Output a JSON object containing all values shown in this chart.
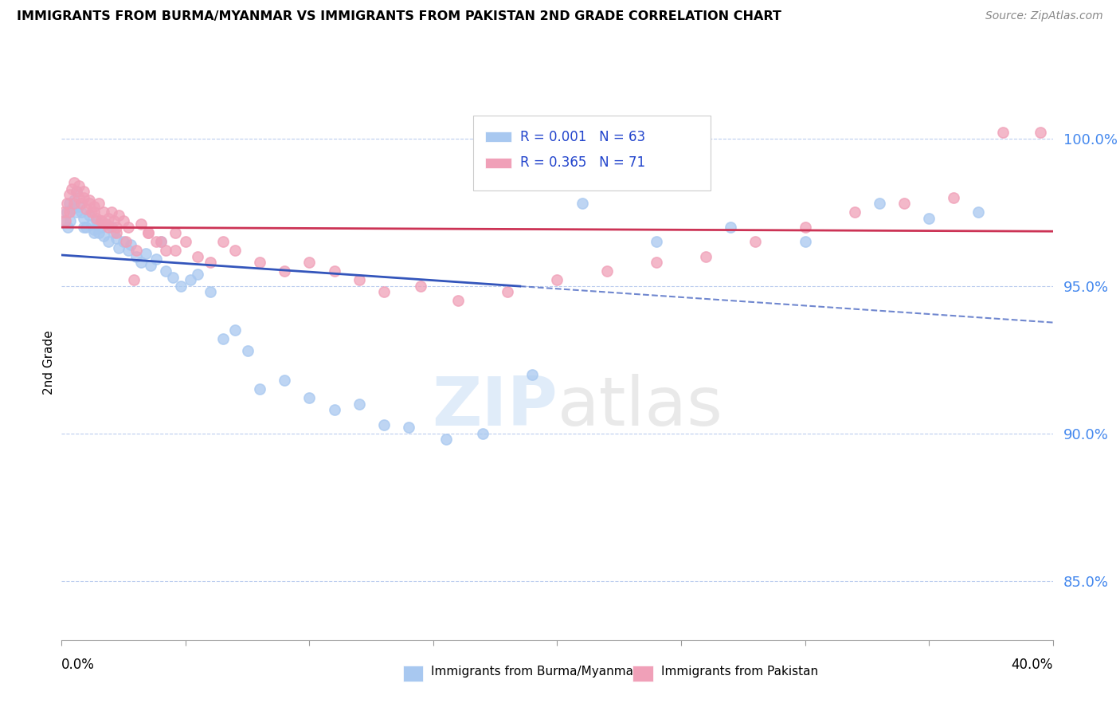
{
  "title": "IMMIGRANTS FROM BURMA/MYANMAR VS IMMIGRANTS FROM PAKISTAN 2ND GRADE CORRELATION CHART",
  "source": "Source: ZipAtlas.com",
  "ylabel": "2nd Grade",
  "yticks": [
    85.0,
    90.0,
    95.0,
    100.0
  ],
  "xlim": [
    0.0,
    0.4
  ],
  "ylim": [
    83.0,
    101.8
  ],
  "watermark_zip": "ZIP",
  "watermark_atlas": "atlas",
  "color_blue": "#a8c8f0",
  "color_pink": "#f0a0b8",
  "trendline_blue_color": "#3355bb",
  "trendline_pink_color": "#cc3355",
  "label_blue": "Immigrants from Burma/Myanmar",
  "label_pink": "Immigrants from Pakistan",
  "blue_x": [
    0.001,
    0.002,
    0.003,
    0.004,
    0.005,
    0.006,
    0.007,
    0.008,
    0.009,
    0.01,
    0.011,
    0.012,
    0.013,
    0.014,
    0.015,
    0.016,
    0.017,
    0.018,
    0.019,
    0.02,
    0.021,
    0.022,
    0.023,
    0.025,
    0.027,
    0.028,
    0.03,
    0.032,
    0.034,
    0.036,
    0.038,
    0.04,
    0.042,
    0.045,
    0.048,
    0.052,
    0.055,
    0.06,
    0.065,
    0.07,
    0.075,
    0.08,
    0.09,
    0.1,
    0.11,
    0.12,
    0.13,
    0.14,
    0.155,
    0.17,
    0.19,
    0.21,
    0.24,
    0.27,
    0.3,
    0.33,
    0.35,
    0.37,
    0.0025,
    0.0035,
    0.006,
    0.009,
    0.013
  ],
  "blue_y": [
    97.2,
    97.5,
    97.8,
    97.6,
    97.9,
    98.2,
    97.7,
    97.5,
    97.3,
    97.0,
    97.4,
    97.1,
    96.9,
    97.2,
    96.8,
    97.0,
    96.7,
    97.1,
    96.5,
    97.0,
    96.8,
    96.6,
    96.3,
    96.5,
    96.2,
    96.4,
    96.0,
    95.8,
    96.1,
    95.7,
    95.9,
    96.5,
    95.5,
    95.3,
    95.0,
    95.2,
    95.4,
    94.8,
    93.2,
    93.5,
    92.8,
    91.5,
    91.8,
    91.2,
    90.8,
    91.0,
    90.3,
    90.2,
    89.8,
    90.0,
    92.0,
    97.8,
    96.5,
    97.0,
    96.5,
    97.8,
    97.3,
    97.5,
    97.0,
    97.2,
    97.5,
    97.0,
    96.8
  ],
  "pink_x": [
    0.001,
    0.002,
    0.003,
    0.004,
    0.005,
    0.006,
    0.007,
    0.008,
    0.009,
    0.01,
    0.011,
    0.012,
    0.013,
    0.014,
    0.015,
    0.016,
    0.017,
    0.018,
    0.019,
    0.02,
    0.021,
    0.022,
    0.023,
    0.025,
    0.027,
    0.029,
    0.032,
    0.035,
    0.038,
    0.042,
    0.046,
    0.05,
    0.055,
    0.06,
    0.065,
    0.07,
    0.08,
    0.09,
    0.1,
    0.11,
    0.12,
    0.13,
    0.145,
    0.16,
    0.18,
    0.2,
    0.22,
    0.24,
    0.26,
    0.28,
    0.3,
    0.32,
    0.34,
    0.36,
    0.38,
    0.0015,
    0.003,
    0.005,
    0.007,
    0.009,
    0.011,
    0.013,
    0.016,
    0.019,
    0.022,
    0.026,
    0.03,
    0.035,
    0.04,
    0.046,
    0.395
  ],
  "pink_y": [
    97.5,
    97.8,
    98.1,
    98.3,
    98.5,
    98.2,
    98.4,
    97.8,
    98.0,
    97.6,
    97.9,
    97.5,
    97.7,
    97.3,
    97.8,
    97.2,
    97.5,
    97.1,
    97.3,
    97.5,
    97.2,
    97.0,
    97.4,
    97.2,
    97.0,
    95.2,
    97.1,
    96.8,
    96.5,
    96.2,
    96.8,
    96.5,
    96.0,
    95.8,
    96.5,
    96.2,
    95.8,
    95.5,
    95.8,
    95.5,
    95.2,
    94.8,
    95.0,
    94.5,
    94.8,
    95.2,
    95.5,
    95.8,
    96.0,
    96.5,
    97.0,
    97.5,
    97.8,
    98.0,
    100.2,
    97.2,
    97.5,
    97.8,
    98.0,
    98.2,
    97.8,
    97.5,
    97.2,
    97.0,
    96.8,
    96.5,
    96.2,
    96.8,
    96.5,
    96.2,
    100.2
  ]
}
